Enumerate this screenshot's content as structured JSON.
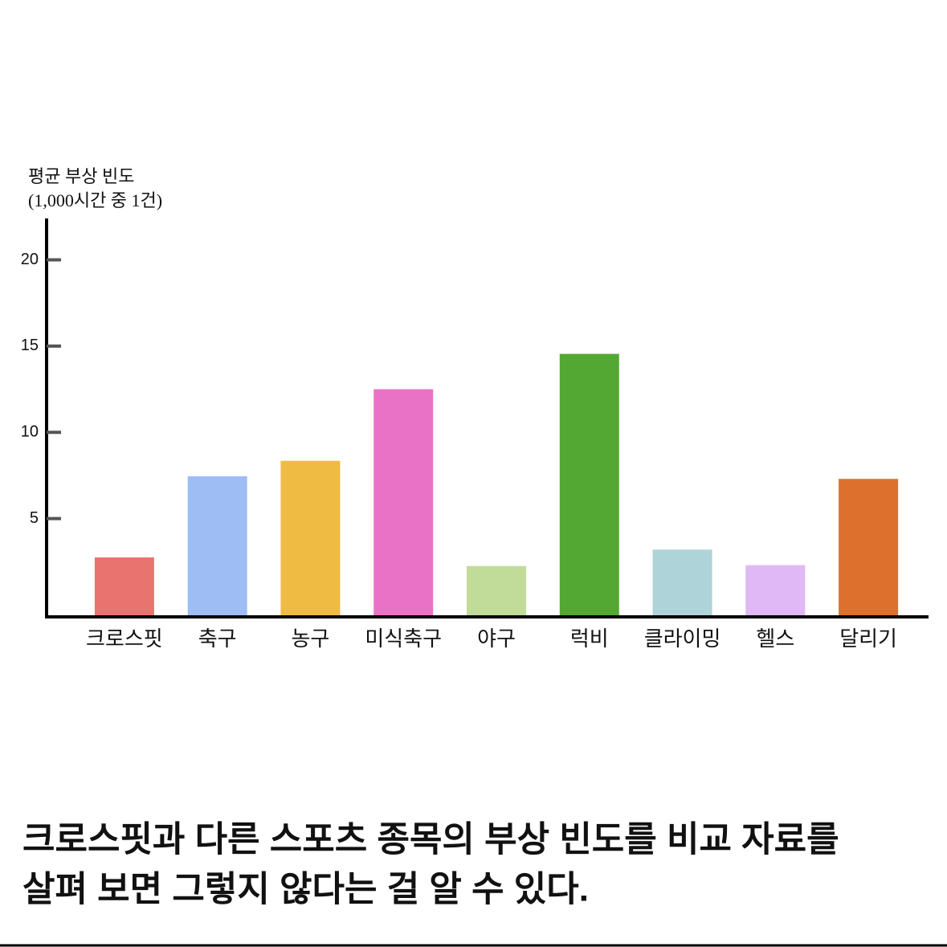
{
  "chart_data": {
    "type": "bar",
    "y_label": [
      "평균 부상 빈도",
      "(1,000시간 중 1건)"
    ],
    "categories": [
      "크로스핏",
      "축구",
      "농구",
      "미식축구",
      "야구",
      "럭비",
      "클라이밍",
      "헬스",
      "달리기"
    ],
    "values": [
      2.75,
      7.45,
      8.35,
      12.5,
      2.25,
      14.55,
      3.2,
      2.3,
      7.3
    ],
    "colors": [
      "#e8736f",
      "#9fbdf5",
      "#f0bb43",
      "#ea72c6",
      "#c1dc98",
      "#52a833",
      "#aed3d8",
      "#e0b8f5",
      "#dc702c"
    ],
    "ylim": [
      -0.7,
      22.4
    ],
    "yticks": [
      5,
      10,
      15,
      20
    ]
  },
  "caption": [
    "크로스핏과 다른 스포츠 종목의 부상 빈도를 비교 자료를",
    "살펴 보면 그렇지 않다는 걸 알 수 있다."
  ]
}
